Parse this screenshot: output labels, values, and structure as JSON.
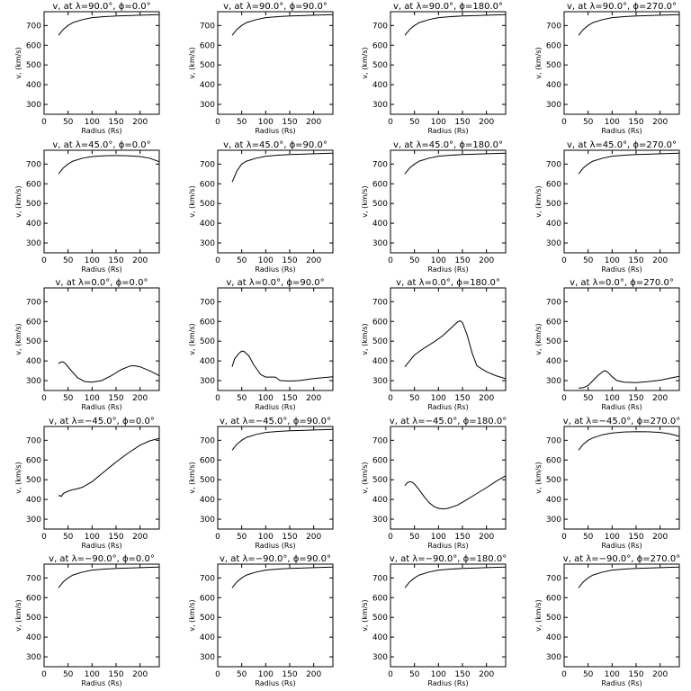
{
  "figure": {
    "background": "#ffffff",
    "line_color": "#000000"
  },
  "chart_data": [
    {
      "type": "line",
      "title": "v, at λ=90.0°, ϕ=0.0°",
      "xlabel": "Radius (Rs)",
      "ylabel": "v, (km/s)",
      "xlim": [
        0,
        240
      ],
      "ylim": [
        250,
        770
      ],
      "xticks": [
        0,
        50,
        100,
        150,
        200
      ],
      "yticks": [
        300,
        400,
        500,
        600,
        700
      ],
      "series": [
        {
          "x": [
            30,
            40,
            50,
            60,
            80,
            100,
            125,
            150,
            175,
            200,
            240
          ],
          "y": [
            650,
            680,
            700,
            715,
            730,
            740,
            745,
            748,
            750,
            752,
            755
          ]
        }
      ]
    },
    {
      "type": "line",
      "title": "v, at λ=90.0°, ϕ=90.0°",
      "xlabel": "Radius (Rs)",
      "ylabel": "v, (km/s)",
      "xlim": [
        0,
        240
      ],
      "ylim": [
        250,
        770
      ],
      "xticks": [
        0,
        50,
        100,
        150,
        200
      ],
      "yticks": [
        300,
        400,
        500,
        600,
        700
      ],
      "series": [
        {
          "x": [
            30,
            40,
            50,
            60,
            80,
            100,
            125,
            150,
            175,
            200,
            240
          ],
          "y": [
            650,
            680,
            700,
            715,
            730,
            740,
            745,
            748,
            750,
            752,
            755
          ]
        }
      ]
    },
    {
      "type": "line",
      "title": "v, at λ=90.0°, ϕ=180.0°",
      "xlabel": "Radius (Rs)",
      "ylabel": "v, (km/s)",
      "xlim": [
        0,
        240
      ],
      "ylim": [
        250,
        770
      ],
      "xticks": [
        0,
        50,
        100,
        150,
        200
      ],
      "yticks": [
        300,
        400,
        500,
        600,
        700
      ],
      "series": [
        {
          "x": [
            30,
            40,
            50,
            60,
            80,
            100,
            125,
            150,
            175,
            200,
            240
          ],
          "y": [
            650,
            680,
            700,
            715,
            730,
            740,
            745,
            748,
            750,
            752,
            755
          ]
        }
      ]
    },
    {
      "type": "line",
      "title": "v, at λ=90.0°, ϕ=270.0°",
      "xlabel": "Radius (Rs)",
      "ylabel": "v, (km/s)",
      "xlim": [
        0,
        240
      ],
      "ylim": [
        250,
        770
      ],
      "xticks": [
        0,
        50,
        100,
        150,
        200
      ],
      "yticks": [
        300,
        400,
        500,
        600,
        700
      ],
      "series": [
        {
          "x": [
            30,
            40,
            50,
            60,
            80,
            100,
            125,
            150,
            175,
            200,
            240
          ],
          "y": [
            650,
            680,
            700,
            715,
            730,
            740,
            745,
            748,
            750,
            752,
            755
          ]
        }
      ]
    },
    {
      "type": "line",
      "title": "v, at λ=45.0°, ϕ=0.0°",
      "xlabel": "Radius (Rs)",
      "ylabel": "v, (km/s)",
      "xlim": [
        0,
        240
      ],
      "ylim": [
        250,
        770
      ],
      "xticks": [
        0,
        50,
        100,
        150,
        200
      ],
      "yticks": [
        300,
        400,
        500,
        600,
        700
      ],
      "series": [
        {
          "x": [
            30,
            40,
            50,
            60,
            80,
            100,
            125,
            150,
            175,
            200,
            220,
            240
          ],
          "y": [
            650,
            680,
            700,
            715,
            730,
            738,
            742,
            743,
            742,
            738,
            730,
            712
          ]
        }
      ]
    },
    {
      "type": "line",
      "title": "v, at λ=45.0°, ϕ=90.0°",
      "xlabel": "Radius (Rs)",
      "ylabel": "v, (km/s)",
      "xlim": [
        0,
        240
      ],
      "ylim": [
        250,
        770
      ],
      "xticks": [
        0,
        50,
        100,
        150,
        200
      ],
      "yticks": [
        300,
        400,
        500,
        600,
        700
      ],
      "series": [
        {
          "x": [
            30,
            33,
            40,
            50,
            60,
            80,
            100,
            125,
            150,
            175,
            200,
            240
          ],
          "y": [
            610,
            625,
            665,
            700,
            715,
            730,
            740,
            745,
            748,
            750,
            752,
            755
          ]
        }
      ]
    },
    {
      "type": "line",
      "title": "v, at λ=45.0°, ϕ=180.0°",
      "xlabel": "Radius (Rs)",
      "ylabel": "v, (km/s)",
      "xlim": [
        0,
        240
      ],
      "ylim": [
        250,
        770
      ],
      "xticks": [
        0,
        50,
        100,
        150,
        200
      ],
      "yticks": [
        300,
        400,
        500,
        600,
        700
      ],
      "series": [
        {
          "x": [
            30,
            40,
            50,
            60,
            80,
            100,
            125,
            150,
            175,
            200,
            240
          ],
          "y": [
            650,
            680,
            700,
            715,
            730,
            740,
            745,
            748,
            750,
            752,
            755
          ]
        }
      ]
    },
    {
      "type": "line",
      "title": "v, at λ=45.0°, ϕ=270.0°",
      "xlabel": "Radius (Rs)",
      "ylabel": "v, (km/s)",
      "xlim": [
        0,
        240
      ],
      "ylim": [
        250,
        770
      ],
      "xticks": [
        0,
        50,
        100,
        150,
        200
      ],
      "yticks": [
        300,
        400,
        500,
        600,
        700
      ],
      "series": [
        {
          "x": [
            30,
            40,
            50,
            60,
            80,
            100,
            125,
            150,
            175,
            200,
            240
          ],
          "y": [
            650,
            680,
            700,
            715,
            730,
            740,
            745,
            748,
            750,
            752,
            755
          ]
        }
      ]
    },
    {
      "type": "line",
      "title": "v, at λ=0.0°, ϕ=0.0°",
      "xlabel": "Radius (Rs)",
      "ylabel": "v, (km/s)",
      "xlim": [
        0,
        240
      ],
      "ylim": [
        250,
        770
      ],
      "xticks": [
        0,
        50,
        100,
        150,
        200
      ],
      "yticks": [
        300,
        400,
        500,
        600,
        700
      ],
      "series": [
        {
          "x": [
            30,
            35,
            40,
            45,
            55,
            70,
            85,
            100,
            120,
            140,
            160,
            180,
            190,
            200,
            220,
            240
          ],
          "y": [
            385,
            395,
            395,
            385,
            355,
            315,
            295,
            292,
            300,
            325,
            355,
            375,
            375,
            370,
            350,
            325
          ]
        }
      ]
    },
    {
      "type": "line",
      "title": "v, at λ=0.0°, ϕ=90.0°",
      "xlabel": "Radius (Rs)",
      "ylabel": "v, (km/s)",
      "xlim": [
        0,
        240
      ],
      "ylim": [
        250,
        770
      ],
      "xticks": [
        0,
        50,
        100,
        150,
        200
      ],
      "yticks": [
        300,
        400,
        500,
        600,
        700
      ],
      "series": [
        {
          "x": [
            30,
            35,
            45,
            50,
            55,
            65,
            75,
            90,
            100,
            120,
            130,
            150,
            170,
            200,
            240
          ],
          "y": [
            370,
            410,
            440,
            450,
            448,
            425,
            380,
            330,
            318,
            318,
            300,
            298,
            300,
            310,
            320
          ]
        }
      ]
    },
    {
      "type": "line",
      "title": "v, at λ=0.0°, ϕ=180.0°",
      "xlabel": "Radius (Rs)",
      "ylabel": "v, (km/s)",
      "xlim": [
        0,
        240
      ],
      "ylim": [
        250,
        770
      ],
      "xticks": [
        0,
        50,
        100,
        150,
        200
      ],
      "yticks": [
        300,
        400,
        500,
        600,
        700
      ],
      "series": [
        {
          "x": [
            30,
            40,
            50,
            70,
            90,
            110,
            130,
            140,
            145,
            150,
            160,
            170,
            180,
            200,
            220,
            240
          ],
          "y": [
            370,
            400,
            430,
            465,
            495,
            530,
            575,
            598,
            603,
            595,
            530,
            440,
            375,
            345,
            325,
            310
          ]
        }
      ]
    },
    {
      "type": "line",
      "title": "v, at λ=0.0°, ϕ=270.0°",
      "xlabel": "Radius (Rs)",
      "ylabel": "v, (km/s)",
      "xlim": [
        0,
        240
      ],
      "ylim": [
        250,
        770
      ],
      "xticks": [
        0,
        50,
        100,
        150,
        200
      ],
      "yticks": [
        300,
        400,
        500,
        600,
        700
      ],
      "series": [
        {
          "x": [
            30,
            40,
            50,
            60,
            70,
            80,
            85,
            90,
            100,
            110,
            125,
            150,
            175,
            200,
            220,
            240
          ],
          "y": [
            262,
            264,
            275,
            300,
            325,
            345,
            350,
            345,
            320,
            300,
            292,
            290,
            295,
            302,
            312,
            322
          ]
        }
      ]
    },
    {
      "type": "line",
      "title": "v, at λ=−45.0°, ϕ=0.0°",
      "xlabel": "Radius (Rs)",
      "ylabel": "v, (km/s)",
      "xlim": [
        0,
        240
      ],
      "ylim": [
        250,
        770
      ],
      "xticks": [
        0,
        50,
        100,
        150,
        200
      ],
      "yticks": [
        300,
        400,
        500,
        600,
        700
      ],
      "series": [
        {
          "x": [
            30,
            33,
            36,
            40,
            50,
            60,
            70,
            80,
            100,
            125,
            150,
            175,
            200,
            220,
            240
          ],
          "y": [
            418,
            420,
            415,
            430,
            442,
            450,
            455,
            462,
            490,
            540,
            590,
            635,
            675,
            697,
            710
          ]
        }
      ]
    },
    {
      "type": "line",
      "title": "v, at λ=−45.0°, ϕ=90.0°",
      "xlabel": "Radius (Rs)",
      "ylabel": "v, (km/s)",
      "xlim": [
        0,
        240
      ],
      "ylim": [
        250,
        770
      ],
      "xticks": [
        0,
        50,
        100,
        150,
        200
      ],
      "yticks": [
        300,
        400,
        500,
        600,
        700
      ],
      "series": [
        {
          "x": [
            30,
            40,
            50,
            60,
            80,
            100,
            125,
            150,
            175,
            200,
            240
          ],
          "y": [
            650,
            680,
            700,
            715,
            730,
            740,
            745,
            748,
            750,
            752,
            755
          ]
        }
      ]
    },
    {
      "type": "line",
      "title": "v, at λ=−45.0°, ϕ=180.0°",
      "xlabel": "Radius (Rs)",
      "ylabel": "v, (km/s)",
      "xlim": [
        0,
        240
      ],
      "ylim": [
        250,
        770
      ],
      "xticks": [
        0,
        50,
        100,
        150,
        200
      ],
      "yticks": [
        300,
        400,
        500,
        600,
        700
      ],
      "series": [
        {
          "x": [
            30,
            35,
            40,
            45,
            50,
            60,
            70,
            80,
            90,
            100,
            110,
            120,
            140,
            160,
            180,
            200,
            220,
            240
          ],
          "y": [
            470,
            485,
            490,
            488,
            478,
            448,
            415,
            385,
            365,
            355,
            352,
            355,
            372,
            400,
            430,
            460,
            492,
            520
          ]
        }
      ]
    },
    {
      "type": "line",
      "title": "v, at λ=−45.0°, ϕ=270.0°",
      "xlabel": "Radius (Rs)",
      "ylabel": "v, (km/s)",
      "xlim": [
        0,
        240
      ],
      "ylim": [
        250,
        770
      ],
      "xticks": [
        0,
        50,
        100,
        150,
        200
      ],
      "yticks": [
        300,
        400,
        500,
        600,
        700
      ],
      "series": [
        {
          "x": [
            30,
            40,
            50,
            60,
            80,
            100,
            125,
            150,
            175,
            200,
            220,
            240
          ],
          "y": [
            650,
            680,
            700,
            712,
            728,
            737,
            742,
            744,
            743,
            740,
            733,
            720
          ]
        }
      ]
    },
    {
      "type": "line",
      "title": "v, at λ=−90.0°, ϕ=0.0°",
      "xlabel": "Radius (Rs)",
      "ylabel": "v, (km/s)",
      "xlim": [
        0,
        240
      ],
      "ylim": [
        250,
        770
      ],
      "xticks": [
        0,
        50,
        100,
        150,
        200
      ],
      "yticks": [
        300,
        400,
        500,
        600,
        700
      ],
      "series": [
        {
          "x": [
            30,
            40,
            50,
            60,
            80,
            100,
            125,
            150,
            175,
            200,
            240
          ],
          "y": [
            650,
            680,
            700,
            715,
            730,
            740,
            745,
            748,
            750,
            752,
            755
          ]
        }
      ]
    },
    {
      "type": "line",
      "title": "v, at λ=−90.0°, ϕ=90.0°",
      "xlabel": "Radius (Rs)",
      "ylabel": "v, (km/s)",
      "xlim": [
        0,
        240
      ],
      "ylim": [
        250,
        770
      ],
      "xticks": [
        0,
        50,
        100,
        150,
        200
      ],
      "yticks": [
        300,
        400,
        500,
        600,
        700
      ],
      "series": [
        {
          "x": [
            30,
            40,
            50,
            60,
            80,
            100,
            125,
            150,
            175,
            200,
            240
          ],
          "y": [
            650,
            680,
            700,
            715,
            730,
            740,
            745,
            748,
            750,
            752,
            755
          ]
        }
      ]
    },
    {
      "type": "line",
      "title": "v, at λ=−90.0°, ϕ=180.0°",
      "xlabel": "Radius (Rs)",
      "ylabel": "v, (km/s)",
      "xlim": [
        0,
        240
      ],
      "ylim": [
        250,
        770
      ],
      "xticks": [
        0,
        50,
        100,
        150,
        200
      ],
      "yticks": [
        300,
        400,
        500,
        600,
        700
      ],
      "series": [
        {
          "x": [
            30,
            40,
            50,
            60,
            80,
            100,
            125,
            150,
            175,
            200,
            240
          ],
          "y": [
            650,
            680,
            700,
            715,
            730,
            740,
            745,
            748,
            750,
            752,
            755
          ]
        }
      ]
    },
    {
      "type": "line",
      "title": "v, at λ=−90.0°, ϕ=270.0°",
      "xlabel": "Radius (Rs)",
      "ylabel": "v, (km/s)",
      "xlim": [
        0,
        240
      ],
      "ylim": [
        250,
        770
      ],
      "xticks": [
        0,
        50,
        100,
        150,
        200
      ],
      "yticks": [
        300,
        400,
        500,
        600,
        700
      ],
      "series": [
        {
          "x": [
            30,
            40,
            50,
            60,
            80,
            100,
            125,
            150,
            175,
            200,
            240
          ],
          "y": [
            650,
            680,
            700,
            715,
            730,
            740,
            745,
            748,
            750,
            752,
            755
          ]
        }
      ]
    }
  ]
}
